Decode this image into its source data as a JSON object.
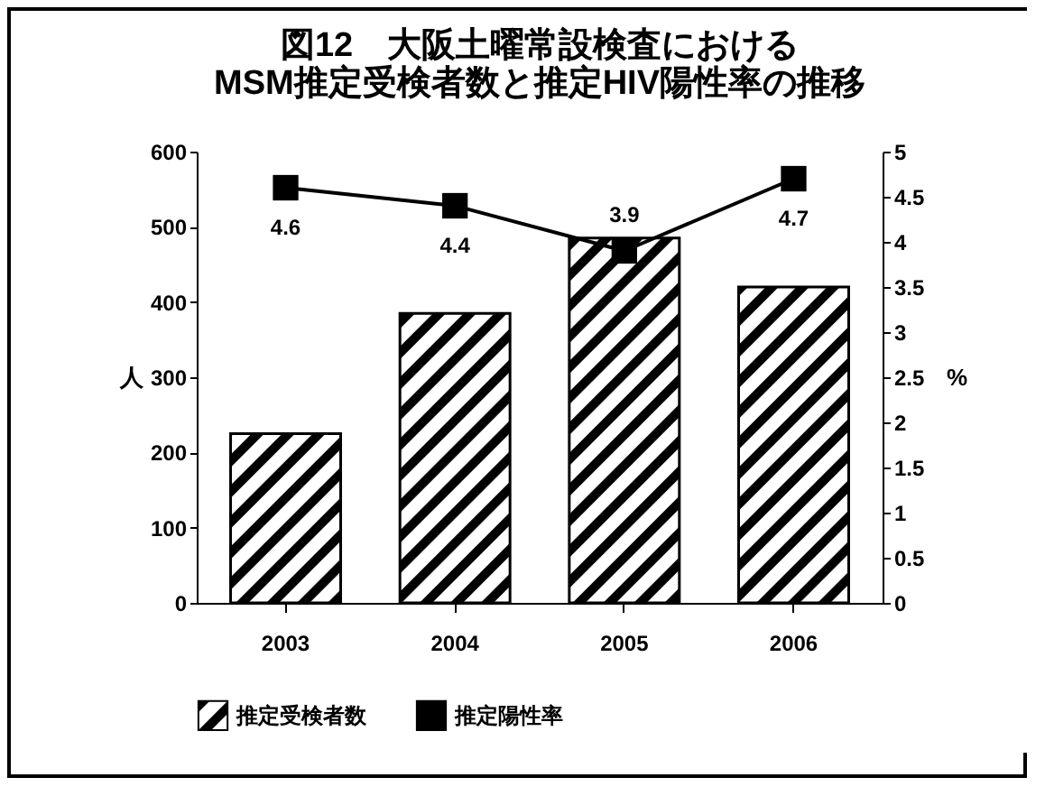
{
  "chart_data": {
    "type": "bar",
    "title": "図12　大阪土曜常設検査における\nMSM推定受検者数と推定HIV陽性率の推移",
    "ylabel": "人",
    "y2label": "%",
    "categories": [
      "2003",
      "2004",
      "2005",
      "2006"
    ],
    "series": [
      {
        "name": "推定受検者数",
        "color": "#000000",
        "values": [
          225,
          385,
          485,
          420
        ]
      },
      {
        "name": "推定陽性率",
        "type": "line",
        "axis": "y2",
        "color": "#000000",
        "values": [
          4.6,
          4.4,
          3.9,
          4.7
        ],
        "value_labels": [
          "4.6",
          "4.4",
          "3.9",
          "4.7"
        ]
      }
    ],
    "ylim": [
      0,
      600
    ],
    "yticks": [
      0,
      100,
      200,
      300,
      400,
      500,
      600
    ],
    "y2lim": [
      0,
      5
    ],
    "y2ticks": [
      0,
      0.5,
      1,
      1.5,
      2,
      2.5,
      3,
      3.5,
      4,
      4.5,
      5
    ],
    "marker": "square",
    "legend": "bottom",
    "grid": false
  }
}
